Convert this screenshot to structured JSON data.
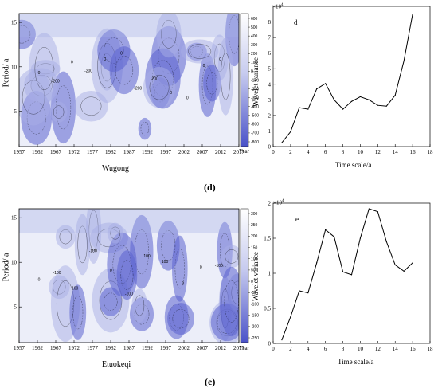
{
  "panels": [
    {
      "caption": "(d)",
      "wavelet": {
        "xlabel": "Wugong",
        "ylabel": "Period/ a",
        "xticks": [
          "1957",
          "1962",
          "1967",
          "1972",
          "1977",
          "1982",
          "1987",
          "1992",
          "1997",
          "2002",
          "2007",
          "2012",
          "2017"
        ],
        "unit_label": "Year",
        "yticks": [
          "5",
          "10",
          "15"
        ],
        "colorbar_ticks": [
          "600",
          "500",
          "400",
          "300",
          "200",
          "100",
          "0",
          "-100",
          "-200",
          "-300",
          "-400",
          "-500",
          "-600",
          "-700",
          "-800"
        ],
        "contour_labels": [
          "0",
          "-200",
          "0",
          "-200",
          "0",
          "0",
          "-200",
          "-200",
          "0",
          "0",
          "0",
          "0"
        ]
      },
      "variance": {
        "label": "d",
        "xlabel": "Time scale/a",
        "ylabel": "Wavelet variance",
        "multiplier": "×10",
        "multiplier_exp": "4",
        "xticks": [
          "0",
          "2",
          "4",
          "6",
          "8",
          "10",
          "12",
          "14",
          "16",
          "18"
        ],
        "yticks": [
          "0",
          "1",
          "2",
          "3",
          "4",
          "5",
          "6",
          "7",
          "8"
        ]
      }
    },
    {
      "caption": "(e)",
      "wavelet": {
        "xlabel": "Etuokeqi",
        "ylabel": "Period/ a",
        "xticks": [
          "1957",
          "1962",
          "1967",
          "1972",
          "1977",
          "1982",
          "1987",
          "1992",
          "1997",
          "2002",
          "2007",
          "2012",
          "2017"
        ],
        "unit_label": "Year",
        "yticks": [
          "5",
          "10",
          "15"
        ],
        "colorbar_ticks": [
          "300",
          "250",
          "200",
          "150",
          "100",
          "50",
          "0",
          "-50",
          "-100",
          "-150",
          "-200",
          "-250"
        ],
        "contour_labels": [
          "0",
          "-100",
          "100",
          "-100",
          "0",
          "-100",
          "100",
          "100",
          "0",
          "0",
          "-100"
        ]
      },
      "variance": {
        "label": "e",
        "xlabel": "Time scale/a",
        "ylabel": "Wavelet variance",
        "multiplier": "×10",
        "multiplier_exp": "4",
        "xticks": [
          "0",
          "2",
          "4",
          "6",
          "8",
          "10",
          "12",
          "14",
          "16",
          "18"
        ],
        "yticks": [
          "0",
          "0.5",
          "1",
          "1.5",
          "2"
        ]
      }
    }
  ],
  "colors": {
    "fill_light": "#eceef9",
    "fill_mid": "#a7aee6",
    "fill_dark": "#5b63cf",
    "line": "#000000"
  },
  "chart_data": [
    {
      "type": "heatmap",
      "xlabel": "Wugong",
      "ylabel": "Period/ a",
      "xlim": [
        1957,
        2017
      ],
      "ylim": [
        1,
        16
      ],
      "colorbar_range": [
        -800,
        600
      ]
    },
    {
      "type": "line",
      "xlabel": "Time scale/a",
      "ylabel": "Wavelet variance",
      "xlim": [
        0,
        18
      ],
      "ylim": [
        0,
        9
      ],
      "y_multiplier": 10000,
      "x": [
        1,
        2,
        3,
        4,
        5,
        6,
        7,
        8,
        9,
        10,
        11,
        12,
        13,
        14,
        15,
        16
      ],
      "values": [
        0.25,
        0.95,
        2.5,
        2.4,
        3.7,
        4.05,
        3.0,
        2.4,
        2.9,
        3.2,
        3.0,
        2.65,
        2.6,
        3.3,
        5.5,
        8.5
      ]
    },
    {
      "type": "heatmap",
      "xlabel": "Etuokeqi",
      "ylabel": "Period/ a",
      "xlim": [
        1957,
        2017
      ],
      "ylim": [
        1,
        16
      ],
      "colorbar_range": [
        -250,
        300
      ]
    },
    {
      "type": "line",
      "xlabel": "Time scale/a",
      "ylabel": "Wavelet variance",
      "xlim": [
        0,
        18
      ],
      "ylim": [
        0,
        2
      ],
      "y_multiplier": 10000,
      "x": [
        1,
        2,
        3,
        4,
        5,
        6,
        7,
        8,
        9,
        10,
        11,
        12,
        13,
        14,
        15,
        16
      ],
      "values": [
        0.05,
        0.38,
        0.75,
        0.72,
        1.15,
        1.62,
        1.52,
        1.02,
        0.98,
        1.5,
        1.92,
        1.88,
        1.45,
        1.12,
        1.03,
        1.15
      ]
    }
  ]
}
